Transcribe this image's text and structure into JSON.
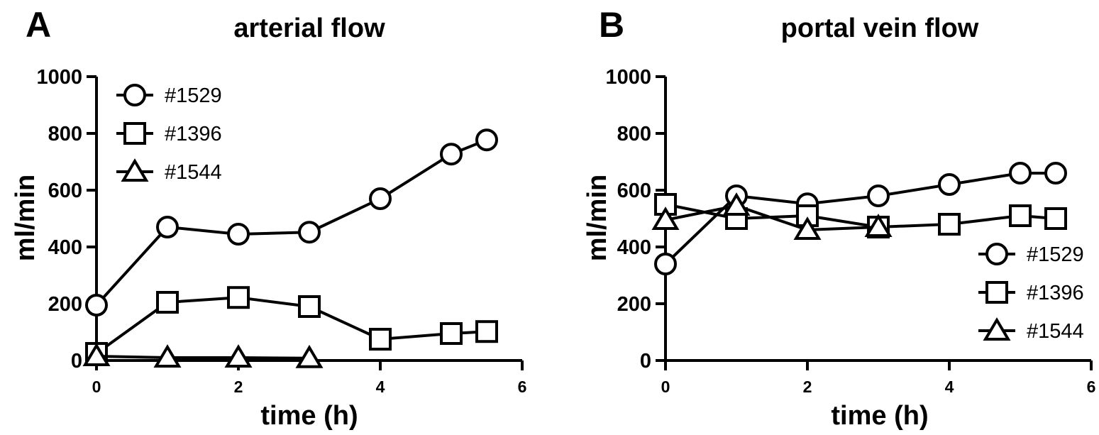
{
  "chart_data": [
    {
      "type": "line",
      "panel": "A",
      "title": "arterial flow",
      "xlabel": "time  (h)",
      "ylabel": "ml/min",
      "xlim": [
        0,
        6
      ],
      "ylim": [
        0,
        1000
      ],
      "xticks": [
        0,
        2,
        4,
        6
      ],
      "yticks": [
        0,
        200,
        400,
        600,
        800,
        1000
      ],
      "legend_position": "top-left",
      "series": [
        {
          "name": "#1529",
          "marker": "circle",
          "x": [
            0,
            1,
            2,
            3,
            4,
            5,
            5.5
          ],
          "y": [
            195,
            470,
            445,
            452,
            570,
            727,
            777
          ]
        },
        {
          "name": "#1396",
          "marker": "square",
          "x": [
            0,
            1,
            2,
            3,
            4,
            5,
            5.5
          ],
          "y": [
            25,
            205,
            222,
            190,
            75,
            95,
            102
          ]
        },
        {
          "name": "#1544",
          "marker": "triangle",
          "x": [
            0,
            1,
            2,
            3
          ],
          "y": [
            15,
            10,
            10,
            8
          ]
        }
      ]
    },
    {
      "type": "line",
      "panel": "B",
      "title": "portal vein flow",
      "xlabel": "time  (h)",
      "ylabel": "ml/min",
      "xlim": [
        0,
        6
      ],
      "ylim": [
        0,
        1000
      ],
      "xticks": [
        0,
        2,
        4,
        6
      ],
      "yticks": [
        0,
        200,
        400,
        600,
        800,
        1000
      ],
      "legend_position": "bottom-right",
      "series": [
        {
          "name": "#1529",
          "marker": "circle",
          "x": [
            0,
            1,
            2,
            3,
            4,
            5,
            5.5
          ],
          "y": [
            340,
            580,
            552,
            580,
            620,
            660,
            660
          ]
        },
        {
          "name": "#1396",
          "marker": "square",
          "x": [
            0,
            1,
            2,
            3,
            4,
            5,
            5.5
          ],
          "y": [
            550,
            500,
            510,
            470,
            480,
            510,
            500
          ]
        },
        {
          "name": "#1544",
          "marker": "triangle",
          "x": [
            0,
            1,
            2,
            3
          ],
          "y": [
            495,
            545,
            460,
            470
          ]
        }
      ]
    }
  ]
}
